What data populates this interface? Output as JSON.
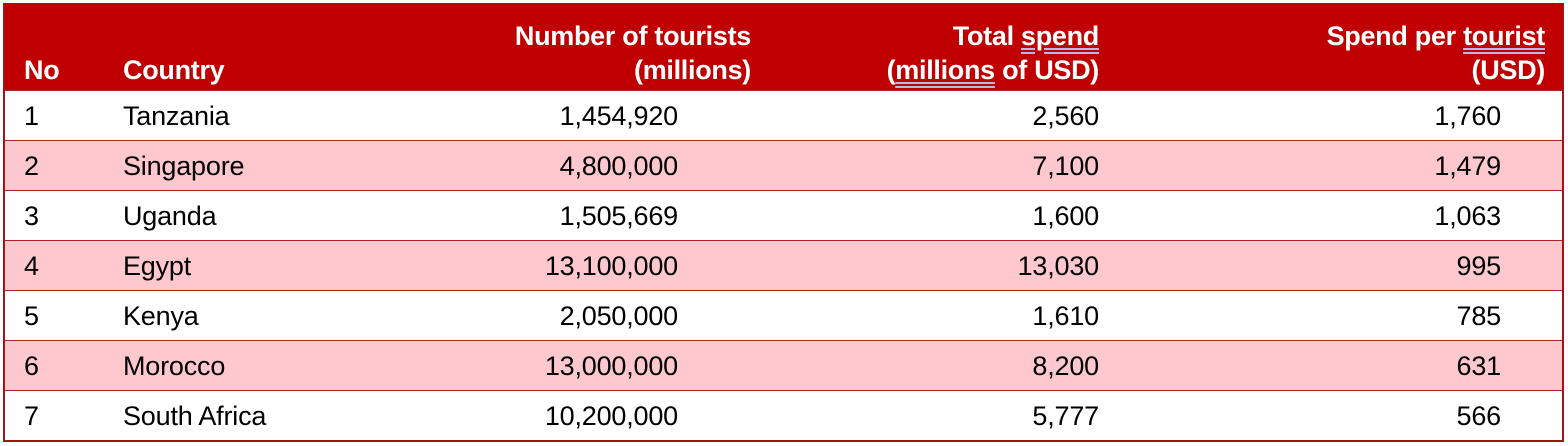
{
  "table": {
    "colors": {
      "header_bg": "#C00000",
      "header_text": "#FFFFFF",
      "alt_row_bg": "#FFC7CE",
      "border": "#A31515"
    },
    "headers": {
      "no": "No",
      "country": "Country",
      "tourists_line1": "Number of tourists",
      "tourists_line2": "(millions)",
      "spend_line1_a": "Total ",
      "spend_line1_b": "spend",
      "spend_line2_a": "(",
      "spend_line2_b": "millions",
      "spend_line2_c": " of USD)",
      "per_line1_a": "Spend per ",
      "per_line1_b": "tourist",
      "per_line2": "(USD)"
    },
    "rows": [
      {
        "no": "1",
        "country": "Tanzania",
        "tourists": "1,454,920",
        "total_spend": "2,560",
        "spend_per_tourist": "1,760"
      },
      {
        "no": "2",
        "country": "Singapore",
        "tourists": "4,800,000",
        "total_spend": "7,100",
        "spend_per_tourist": "1,479"
      },
      {
        "no": "3",
        "country": "Uganda",
        "tourists": "1,505,669",
        "total_spend": "1,600",
        "spend_per_tourist": "1,063"
      },
      {
        "no": "4",
        "country": "Egypt",
        "tourists": "13,100,000",
        "total_spend": "13,030",
        "spend_per_tourist": "995"
      },
      {
        "no": "5",
        "country": "Kenya",
        "tourists": "2,050,000",
        "total_spend": "1,610",
        "spend_per_tourist": "785"
      },
      {
        "no": "6",
        "country": "Morocco",
        "tourists": "13,000,000",
        "total_spend": "8,200",
        "spend_per_tourist": "631"
      },
      {
        "no": "7",
        "country": "South Africa",
        "tourists": "10,200,000",
        "total_spend": "5,777",
        "spend_per_tourist": "566"
      }
    ]
  }
}
